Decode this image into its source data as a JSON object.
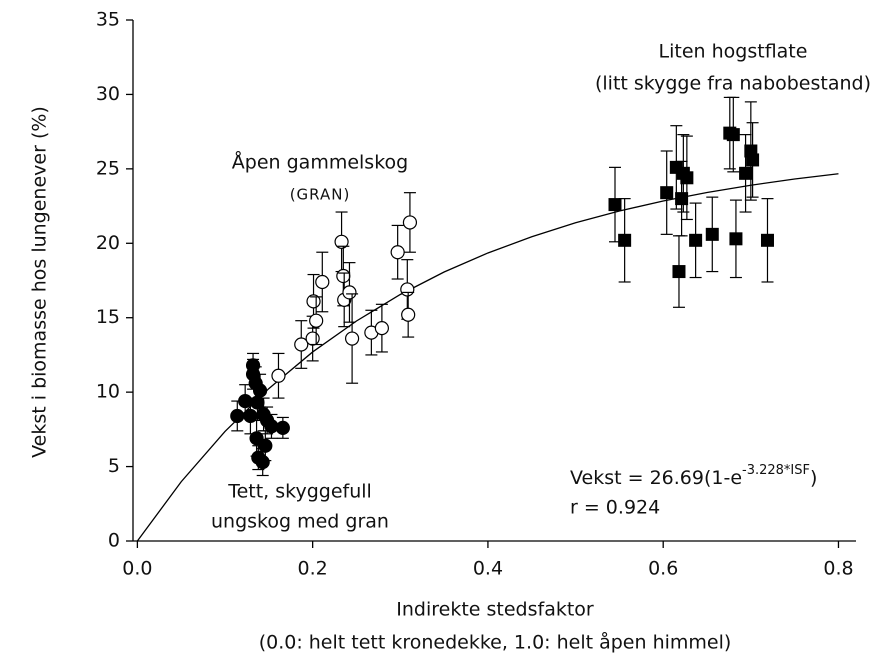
{
  "chart_data": {
    "type": "scatter",
    "ylabel": "Vekst i biomasse hos lungenever (%)",
    "xlabel": [
      "Indirekte stedsfaktor",
      "(0.0: helt tett kronedekke, 1.0: helt åpen himmel)"
    ],
    "xlim": [
      -0.005,
      0.82
    ],
    "ylim": [
      0,
      35
    ],
    "xticks": [
      {
        "value": 0,
        "label": "0.0"
      },
      0.2,
      0.4,
      0.6,
      0.8
    ],
    "yticks": [
      0,
      5,
      10,
      15,
      20,
      25,
      30,
      35
    ],
    "series": [
      {
        "marker": "circle",
        "color": "#000000",
        "fill": "#000000",
        "x": [
          0.114,
          0.123,
          0.129,
          0.132,
          0.132,
          0.135,
          0.136,
          0.137,
          0.138,
          0.14,
          0.143,
          0.144,
          0.146,
          0.148,
          0.153,
          0.166
        ],
        "values": [
          8.4,
          9.4,
          8.4,
          11.8,
          11.2,
          10.6,
          6.9,
          9.3,
          5.6,
          10.1,
          5.3,
          8.5,
          6.4,
          8.1,
          7.7,
          7.6
        ],
        "errors": [
          1.0,
          1.1,
          1.2,
          0.8,
          1.0,
          1.1,
          1.2,
          1.2,
          0.8,
          1.1,
          0.9,
          1.1,
          1.0,
          0.9,
          0.8,
          0.7
        ]
      },
      {
        "marker": "circle",
        "color": "#000000",
        "fill": "#ffffff",
        "x": [
          0.161,
          0.187,
          0.2,
          0.201,
          0.204,
          0.211,
          0.233,
          0.235,
          0.236,
          0.242,
          0.245,
          0.267,
          0.279,
          0.297,
          0.308,
          0.309,
          0.311
        ],
        "values": [
          11.1,
          13.2,
          13.6,
          16.1,
          14.8,
          17.4,
          20.1,
          17.8,
          16.2,
          16.7,
          13.6,
          14.0,
          14.3,
          19.4,
          16.9,
          15.2,
          21.4
        ],
        "errors": [
          1.5,
          1.6,
          1.5,
          1.8,
          1.6,
          2.0,
          2.0,
          2.0,
          1.8,
          2.0,
          3.0,
          1.5,
          1.6,
          1.8,
          2.0,
          1.5,
          2.0
        ]
      },
      {
        "marker": "square",
        "color": "#000000",
        "fill": "#000000",
        "x": [
          0.545,
          0.556,
          0.604,
          0.615,
          0.618,
          0.621,
          0.623,
          0.627,
          0.637,
          0.656,
          0.676,
          0.68,
          0.683,
          0.694,
          0.7,
          0.702,
          0.719
        ],
        "values": [
          22.6,
          20.2,
          23.4,
          25.1,
          18.1,
          23.0,
          24.7,
          24.4,
          20.2,
          20.6,
          27.4,
          27.3,
          20.3,
          24.7,
          26.2,
          25.6,
          20.2
        ],
        "errors": [
          2.5,
          2.8,
          2.8,
          2.8,
          2.4,
          2.5,
          2.6,
          2.8,
          2.5,
          2.5,
          2.4,
          2.5,
          2.6,
          2.6,
          3.3,
          2.5,
          2.8
        ]
      }
    ],
    "fit": {
      "x": [
        0,
        0.05,
        0.1,
        0.15,
        0.2,
        0.25,
        0.3,
        0.35,
        0.4,
        0.45,
        0.5,
        0.55,
        0.6,
        0.65,
        0.7,
        0.75,
        0.8
      ],
      "values": [
        0,
        3.98,
        7.36,
        10.24,
        12.7,
        14.78,
        16.56,
        18.07,
        19.35,
        20.44,
        21.38,
        22.17,
        22.84,
        23.41,
        23.9,
        24.32,
        24.67
      ]
    },
    "annotations": [
      [
        "Liten hogstflate",
        "(litt skygge fra nabobestand)"
      ],
      [
        "Åpen gammelskog",
        "(GRAN)"
      ],
      [
        "Tett, skyggefull",
        "ungskog med gran"
      ]
    ],
    "equation": {
      "base": "Vekst = 26.69(1-e",
      "exp": "-3.228*ISF",
      "close": ")"
    },
    "r_label": "r = 0.924"
  }
}
